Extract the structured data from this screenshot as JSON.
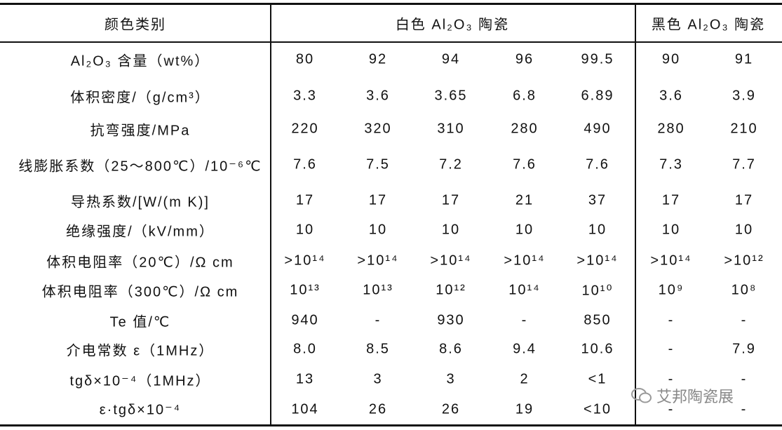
{
  "table": {
    "header": [
      "颜色类别",
      "白色 Al₂O₃ 陶瓷",
      "黑色 Al₂O₃ 陶瓷"
    ],
    "rows": [
      [
        "Al₂O₃ 含量（wt%）",
        "80",
        "92",
        "94",
        "96",
        "99.5",
        "90",
        "91"
      ],
      [
        "体积密度/（g/cm³）",
        "3.3",
        "3.6",
        "3.65",
        "6.8",
        "6.89",
        "3.6",
        "3.9"
      ],
      [
        "抗弯强度/MPa",
        "220",
        "320",
        "310",
        "280",
        "490",
        "280",
        "210"
      ],
      [
        "线膨胀系数（25～800℃）/10⁻⁶℃",
        "7.6",
        "7.5",
        "7.2",
        "7.6",
        "7.6",
        "7.3",
        "7.7"
      ],
      [
        "导热系数/[W/(m K)]",
        "17",
        "17",
        "17",
        "21",
        "37",
        "17",
        "17"
      ],
      [
        "绝缘强度/（kV/mm）",
        "10",
        "10",
        "10",
        "10",
        "10",
        "10",
        "10"
      ],
      [
        "体积电阻率（20℃）/Ω cm",
        ">10¹⁴",
        ">10¹⁴",
        ">10¹⁴",
        ">10¹⁴",
        ">10¹⁴",
        ">10¹⁴",
        ">10¹²"
      ],
      [
        "体积电阻率（300℃）/Ω cm",
        "10¹³",
        "10¹³",
        "10¹²",
        "10¹⁴",
        "10¹⁰",
        "10⁹",
        "10⁸"
      ],
      [
        "Te 值/℃",
        "940",
        "-",
        "930",
        "-",
        "850",
        "-",
        "-"
      ],
      [
        "介电常数 ε（1MHz）",
        "8.0",
        "8.5",
        "8.6",
        "9.4",
        "10.6",
        "-",
        "7.9"
      ],
      [
        "tgδ×10⁻⁴（1MHz）",
        "13",
        "3",
        "3",
        "2",
        "<1",
        "-",
        "-"
      ],
      [
        "ε·tgδ×10⁻⁴",
        "104",
        "26",
        "26",
        "19",
        "<10",
        "-",
        "-"
      ]
    ]
  },
  "watermark": "艾邦陶瓷展"
}
